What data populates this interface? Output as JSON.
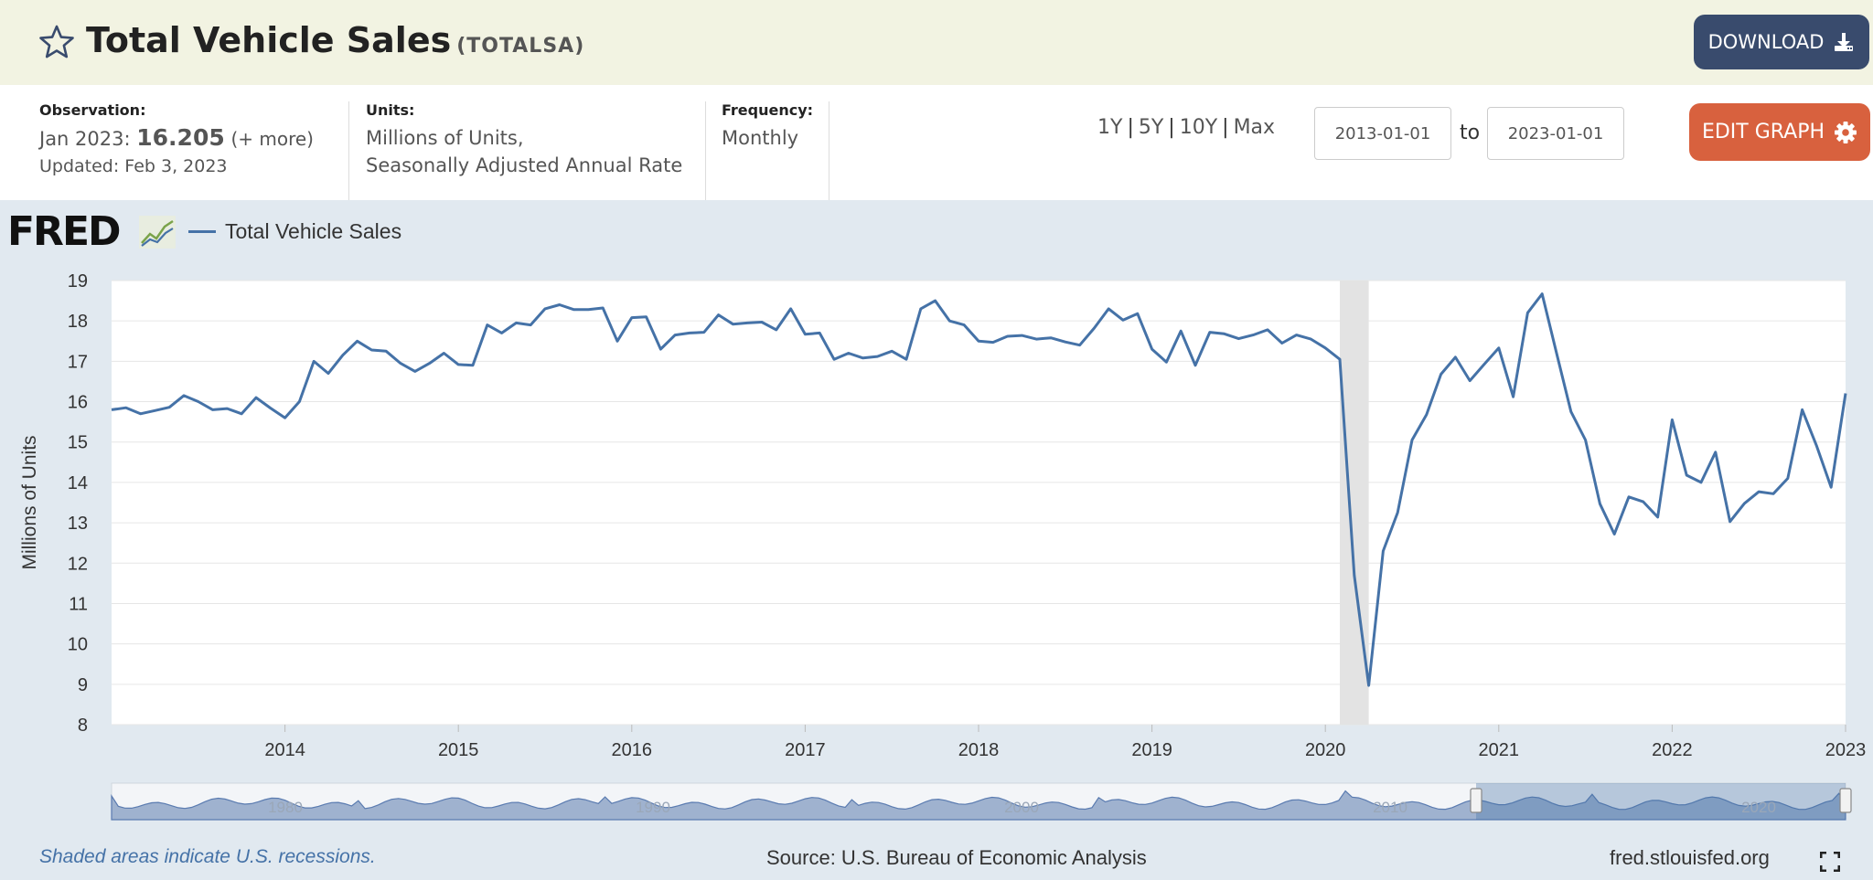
{
  "header": {
    "title": "Total Vehicle Sales",
    "series_id": "(TOTALSA)",
    "download_label": "DOWNLOAD"
  },
  "info": {
    "observation_label": "Observation:",
    "observation_date": "Jan 2023:",
    "observation_value": "16.205",
    "observation_more": "(+ more)",
    "updated": "Updated: Feb 3, 2023",
    "units_label": "Units:",
    "units_line1": "Millions of Units,",
    "units_line2": "Seasonally Adjusted Annual Rate",
    "frequency_label": "Frequency:",
    "frequency_value": "Monthly"
  },
  "range": {
    "links": [
      "1Y",
      "5Y",
      "10Y",
      "Max"
    ],
    "start_date": "2013-01-01",
    "to_label": "to",
    "end_date": "2023-01-01",
    "edit_label": "EDIT GRAPH"
  },
  "branding": {
    "logo": "FRED"
  },
  "footer": {
    "recession_note": "Shaded areas indicate U.S. recessions.",
    "source": "Source: U.S. Bureau of Economic Analysis",
    "url": "fred.stlouisfed.org"
  },
  "colors": {
    "line": "#4572a7",
    "recession": "#e3e3e3",
    "download": "#394b6d",
    "edit": "#d8613e"
  },
  "chart_data": {
    "type": "line",
    "ylabel": "Millions of Units",
    "ylim": [
      8,
      19
    ],
    "yticks": [
      8,
      9,
      10,
      11,
      12,
      13,
      14,
      15,
      16,
      17,
      18,
      19
    ],
    "xlim": [
      "2013-01",
      "2023-01"
    ],
    "xticks": [
      "2014",
      "2015",
      "2016",
      "2017",
      "2018",
      "2019",
      "2020",
      "2021",
      "2022",
      "2023"
    ],
    "recessions": [
      {
        "start": "2020-02",
        "end": "2020-04"
      }
    ],
    "navigator_ticks": [
      "1980",
      "1990",
      "2000",
      "2010",
      "2020"
    ],
    "series": [
      {
        "name": "Total Vehicle Sales",
        "start": "2013-01",
        "frequency": "monthly",
        "values": [
          15.8,
          15.85,
          15.7,
          15.78,
          15.86,
          16.15,
          16.0,
          15.8,
          15.83,
          15.7,
          16.1,
          15.84,
          15.6,
          16.0,
          17.0,
          16.7,
          17.15,
          17.5,
          17.28,
          17.25,
          16.95,
          16.75,
          16.95,
          17.2,
          16.92,
          16.9,
          17.9,
          17.7,
          17.95,
          17.9,
          18.3,
          18.4,
          18.28,
          18.28,
          18.32,
          17.5,
          18.08,
          18.1,
          17.3,
          17.65,
          17.7,
          17.72,
          18.15,
          17.92,
          17.95,
          17.97,
          17.78,
          18.3,
          17.67,
          17.7,
          17.05,
          17.2,
          17.08,
          17.12,
          17.25,
          17.05,
          18.3,
          18.5,
          18.0,
          17.9,
          17.5,
          17.47,
          17.62,
          17.64,
          17.55,
          17.58,
          17.48,
          17.4,
          17.82,
          18.3,
          18.02,
          18.18,
          17.3,
          16.98,
          17.75,
          16.9,
          17.72,
          17.68,
          17.56,
          17.65,
          17.78,
          17.45,
          17.65,
          17.55,
          17.33,
          17.05,
          11.7,
          8.97,
          12.3,
          13.25,
          15.05,
          15.68,
          16.68,
          17.1,
          16.52,
          16.93,
          17.33,
          16.12,
          18.2,
          18.67,
          17.2,
          15.75,
          15.05,
          13.47,
          12.72,
          13.64,
          13.52,
          13.14,
          15.55,
          14.18,
          14.0,
          14.75,
          13.03,
          13.48,
          13.77,
          13.72,
          14.1,
          15.8,
          14.9,
          13.88,
          16.205
        ]
      }
    ]
  }
}
